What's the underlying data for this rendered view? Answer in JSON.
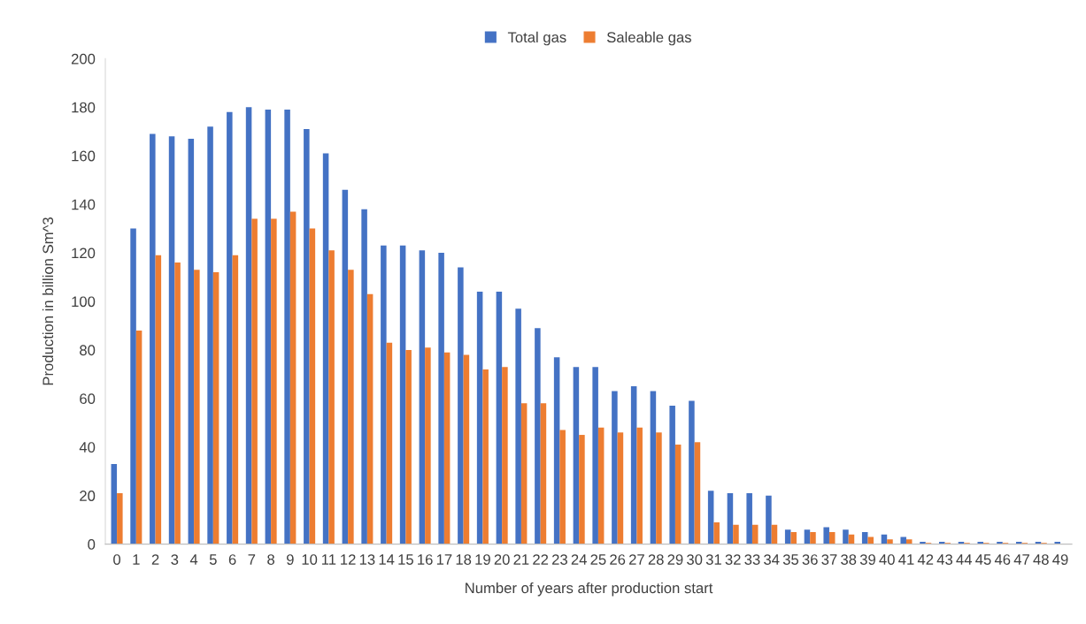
{
  "chart_data": {
    "type": "bar",
    "xlabel": "Number of years after production start",
    "ylabel": "Production in billion Sm^3",
    "categories": [
      "0",
      "1",
      "2",
      "3",
      "4",
      "5",
      "6",
      "7",
      "8",
      "9",
      "10",
      "11",
      "12",
      "13",
      "14",
      "15",
      "16",
      "17",
      "18",
      "19",
      "20",
      "21",
      "22",
      "23",
      "24",
      "25",
      "26",
      "27",
      "28",
      "29",
      "30",
      "31",
      "32",
      "33",
      "34",
      "35",
      "36",
      "37",
      "38",
      "39",
      "40",
      "41",
      "42",
      "43",
      "44",
      "45",
      "46",
      "47",
      "48",
      "49"
    ],
    "series": [
      {
        "name": "Total gas",
        "color": "#4472c4",
        "values": [
          33,
          130,
          169,
          168,
          167,
          172,
          178,
          180,
          179,
          179,
          171,
          161,
          146,
          138,
          123,
          123,
          121,
          120,
          114,
          104,
          104,
          97,
          89,
          77,
          73,
          73,
          63,
          65,
          63,
          57,
          59,
          22,
          21,
          21,
          20,
          6,
          6,
          7,
          6,
          5,
          4,
          3,
          1,
          1,
          1,
          1,
          1,
          1,
          1,
          1
        ]
      },
      {
        "name": "Saleable gas",
        "color": "#ed7d31",
        "values": [
          21,
          88,
          119,
          116,
          113,
          112,
          119,
          134,
          134,
          137,
          130,
          121,
          113,
          103,
          83,
          80,
          81,
          79,
          78,
          72,
          73,
          58,
          58,
          47,
          45,
          48,
          46,
          48,
          46,
          41,
          42,
          9,
          8,
          8,
          8,
          5,
          5,
          5,
          4,
          3,
          2,
          2,
          0.5,
          0.5,
          0.5,
          0.5,
          0.5,
          0.5,
          0.5,
          0
        ]
      }
    ],
    "ylim": [
      0,
      200
    ],
    "yticks": [
      0,
      20,
      40,
      60,
      80,
      100,
      120,
      140,
      160,
      180,
      200
    ],
    "grid": false,
    "legend": "top"
  }
}
